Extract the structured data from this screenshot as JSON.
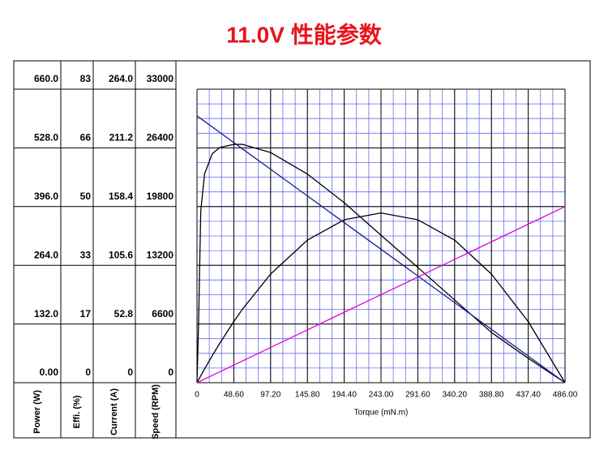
{
  "chart_data": {
    "type": "line",
    "title": "11.0V 性能参数",
    "x_label": "Torque (mN.m)",
    "xlim": [
      0,
      486
    ],
    "xticks": [
      0,
      {
        "value": 48.6,
        "label": "48.60"
      },
      {
        "value": 97.2,
        "label": "97.20"
      },
      {
        "value": 145.8,
        "label": "145.80"
      },
      {
        "value": 194.4,
        "label": "194.40"
      },
      {
        "value": 243,
        "label": "243.00"
      },
      {
        "value": 291.6,
        "label": "291.60"
      },
      {
        "value": 340.2,
        "label": "340.20"
      },
      {
        "value": 388.8,
        "label": "388.80"
      },
      {
        "value": 437.4,
        "label": "437.40"
      },
      {
        "value": 486,
        "label": "486.00"
      }
    ],
    "grid": true,
    "y_axes": [
      {
        "label": "Power (W)",
        "ylim": [
          0,
          660
        ],
        "yticks": [
          {
            "value": 0,
            "label": "0.00"
          },
          {
            "value": 132,
            "label": "132.0"
          },
          {
            "value": 264,
            "label": "264.0"
          },
          {
            "value": 396,
            "label": "396.0"
          },
          {
            "value": 528,
            "label": "528.0"
          },
          {
            "value": 660,
            "label": "660.0"
          }
        ]
      },
      {
        "label": "Effi. (%)",
        "ylim": [
          0,
          83
        ],
        "yticks": [
          0,
          {
            "value": 16.6,
            "label": "17"
          },
          {
            "value": 33.2,
            "label": "33"
          },
          {
            "value": 49.8,
            "label": "50"
          },
          {
            "value": 66.4,
            "label": "66"
          },
          83
        ]
      },
      {
        "label": "Current (A)",
        "ylim": [
          0,
          264
        ],
        "yticks": [
          0,
          52.8,
          105.6,
          158.4,
          211.2,
          {
            "value": 264,
            "label": "264.0"
          }
        ]
      },
      {
        "label": "Speed (RPM)",
        "ylim": [
          0,
          33000
        ],
        "yticks": [
          0,
          6600,
          13200,
          19800,
          26400,
          33000
        ]
      }
    ],
    "x": [
      0,
      2,
      5,
      10,
      20,
      30,
      48.6,
      60,
      97.2,
      145.8,
      194.4,
      243,
      291.6,
      340.2,
      388.8,
      437.4,
      486
    ],
    "series": [
      {
        "axis": 0,
        "color": "#000000",
        "values": [
          0,
          6.26,
          15.55,
          30.77,
          60.24,
          88.43,
          137.4,
          165.2,
          244.3,
          320.6,
          366.4,
          381.7,
          366.4,
          320.6,
          244.3,
          137.4,
          0
        ]
      },
      {
        "axis": 1,
        "color": "#000000",
        "values": [
          0,
          16,
          48.6,
          59,
          64.7,
          66.5,
          67.4,
          67.4,
          65.1,
          59,
          50.9,
          41.7,
          32.6,
          23.4,
          14.2,
          6.9,
          0
        ]
      },
      {
        "axis": 2,
        "color": "#e000e0",
        "values": [
          0,
          0.65,
          1.63,
          3.26,
          6.52,
          9.78,
          15.84,
          19.56,
          31.68,
          47.52,
          63.36,
          79.2,
          95.04,
          110.88,
          126.72,
          142.56,
          158.4
        ]
      },
      {
        "axis": 3,
        "color": "#1c1c8c",
        "values": [
          30000,
          29877,
          29691,
          29383,
          28765,
          28148,
          27000,
          26296,
          24000,
          21000,
          18000,
          15000,
          12000,
          9000,
          6000,
          3000,
          0
        ]
      }
    ]
  }
}
